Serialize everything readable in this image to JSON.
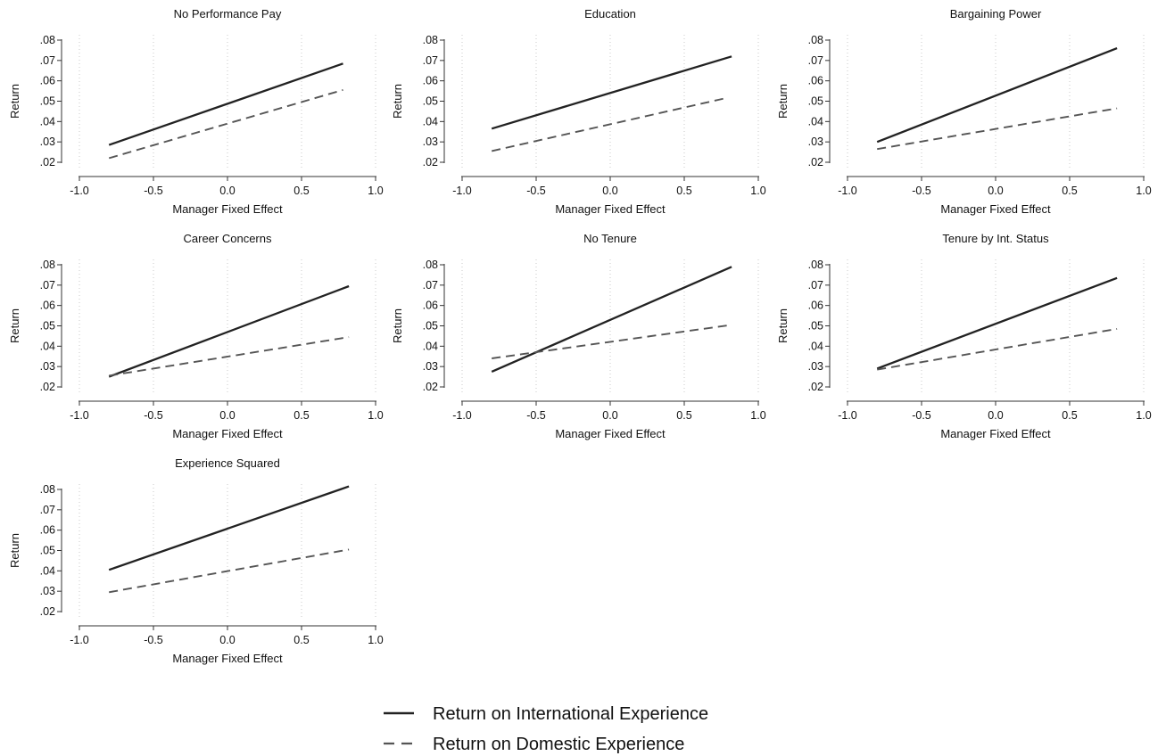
{
  "legend": {
    "items": [
      {
        "label": "Return on International Experience",
        "style": "solid",
        "color": "#222222"
      },
      {
        "label": "Return on Domestic Experience",
        "style": "dashed",
        "color": "#555555"
      }
    ]
  },
  "chart_data": [
    {
      "type": "line",
      "title": "No Performance Pay",
      "xlabel": "Manager Fixed Effect",
      "ylabel": "Return",
      "xlim": [
        -1.0,
        1.0
      ],
      "ylim": [
        0.02,
        0.08
      ],
      "xticks": [
        "-1.0",
        "-0.5",
        "0.0",
        "0.5",
        "1.0"
      ],
      "yticks": [
        ".02",
        ".03",
        ".04",
        ".05",
        ".06",
        ".07",
        ".08"
      ],
      "grid": "vertical dotted",
      "series": [
        {
          "name": "Return on International Experience",
          "x": [
            -0.8,
            0.78
          ],
          "y": [
            0.0285,
            0.0685
          ]
        },
        {
          "name": "Return on Domestic Experience",
          "x": [
            -0.8,
            0.78
          ],
          "y": [
            0.022,
            0.0555
          ]
        }
      ]
    },
    {
      "type": "line",
      "title": "Education",
      "xlabel": "Manager Fixed Effect",
      "ylabel": "Return",
      "xlim": [
        -1.0,
        1.0
      ],
      "ylim": [
        0.02,
        0.08
      ],
      "xticks": [
        "-1.0",
        "-0.5",
        "0.0",
        "0.5",
        "1.0"
      ],
      "yticks": [
        ".02",
        ".03",
        ".04",
        ".05",
        ".06",
        ".07",
        ".08"
      ],
      "grid": "vertical dotted",
      "series": [
        {
          "name": "Return on International Experience",
          "x": [
            -0.8,
            0.82
          ],
          "y": [
            0.0365,
            0.072
          ]
        },
        {
          "name": "Return on Domestic Experience",
          "x": [
            -0.8,
            0.78
          ],
          "y": [
            0.0255,
            0.0515
          ]
        }
      ]
    },
    {
      "type": "line",
      "title": "Bargaining Power",
      "xlabel": "Manager Fixed Effect",
      "ylabel": "Return",
      "xlim": [
        -1.0,
        1.0
      ],
      "ylim": [
        0.02,
        0.08
      ],
      "xticks": [
        "-1.0",
        "-0.5",
        "0.0",
        "0.5",
        "1.0"
      ],
      "yticks": [
        ".02",
        ".03",
        ".04",
        ".05",
        ".06",
        ".07",
        ".08"
      ],
      "grid": "vertical dotted",
      "series": [
        {
          "name": "Return on International Experience",
          "x": [
            -0.8,
            0.82
          ],
          "y": [
            0.03,
            0.076
          ]
        },
        {
          "name": "Return on Domestic Experience",
          "x": [
            -0.8,
            0.82
          ],
          "y": [
            0.0265,
            0.0465
          ]
        }
      ]
    },
    {
      "type": "line",
      "title": "Career Concerns",
      "xlabel": "Manager Fixed Effect",
      "ylabel": "Return",
      "xlim": [
        -1.0,
        1.0
      ],
      "ylim": [
        0.02,
        0.08
      ],
      "xticks": [
        "-1.0",
        "-0.5",
        "0.0",
        "0.5",
        "1.0"
      ],
      "yticks": [
        ".02",
        ".03",
        ".04",
        ".05",
        ".06",
        ".07",
        ".08"
      ],
      "grid": "vertical dotted",
      "series": [
        {
          "name": "Return on International Experience",
          "x": [
            -0.8,
            0.82
          ],
          "y": [
            0.025,
            0.0695
          ]
        },
        {
          "name": "Return on Domestic Experience",
          "x": [
            -0.8,
            0.82
          ],
          "y": [
            0.0255,
            0.0445
          ]
        }
      ]
    },
    {
      "type": "line",
      "title": "No Tenure",
      "xlabel": "Manager Fixed Effect",
      "ylabel": "Return",
      "xlim": [
        -1.0,
        1.0
      ],
      "ylim": [
        0.02,
        0.08
      ],
      "xticks": [
        "-1.0",
        "-0.5",
        "0.0",
        "0.5",
        "1.0"
      ],
      "yticks": [
        ".02",
        ".03",
        ".04",
        ".05",
        ".06",
        ".07",
        ".08"
      ],
      "grid": "vertical dotted",
      "series": [
        {
          "name": "Return on International Experience",
          "x": [
            -0.8,
            0.82
          ],
          "y": [
            0.0275,
            0.079
          ]
        },
        {
          "name": "Return on Domestic Experience",
          "x": [
            -0.8,
            0.82
          ],
          "y": [
            0.034,
            0.0505
          ]
        }
      ]
    },
    {
      "type": "line",
      "title": "Tenure by Int. Status",
      "xlabel": "Manager Fixed Effect",
      "ylabel": "Return",
      "xlim": [
        -1.0,
        1.0
      ],
      "ylim": [
        0.02,
        0.08
      ],
      "xticks": [
        "-1.0",
        "-0.5",
        "0.0",
        "0.5",
        "1.0"
      ],
      "yticks": [
        ".02",
        ".03",
        ".04",
        ".05",
        ".06",
        ".07",
        ".08"
      ],
      "grid": "vertical dotted",
      "series": [
        {
          "name": "Return on International Experience",
          "x": [
            -0.8,
            0.82
          ],
          "y": [
            0.029,
            0.0735
          ]
        },
        {
          "name": "Return on Domestic Experience",
          "x": [
            -0.8,
            0.82
          ],
          "y": [
            0.0285,
            0.0485
          ]
        }
      ]
    },
    {
      "type": "line",
      "title": "Experience Squared",
      "xlabel": "Manager Fixed Effect",
      "ylabel": "Return",
      "xlim": [
        -1.0,
        1.0
      ],
      "ylim": [
        0.02,
        0.08
      ],
      "xticks": [
        "-1.0",
        "-0.5",
        "0.0",
        "0.5",
        "1.0"
      ],
      "yticks": [
        ".02",
        ".03",
        ".04",
        ".05",
        ".06",
        ".07",
        ".08"
      ],
      "grid": "vertical dotted",
      "series": [
        {
          "name": "Return on International Experience",
          "x": [
            -0.8,
            0.82
          ],
          "y": [
            0.0405,
            0.0815
          ]
        },
        {
          "name": "Return on Domestic Experience",
          "x": [
            -0.8,
            0.82
          ],
          "y": [
            0.0295,
            0.0505
          ]
        }
      ]
    }
  ]
}
